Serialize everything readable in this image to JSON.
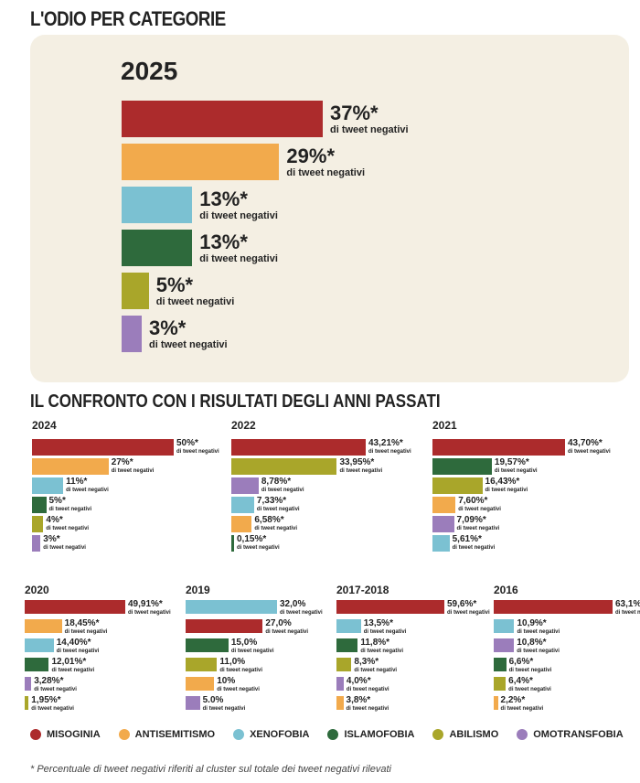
{
  "title": "L'ODIO PER CATEGORIE",
  "comparison_title": "IL CONFRONTO CON I RISULTATI DEGLI ANNI PASSATI",
  "sub_label": "di tweet negativi",
  "footnote": "* Percentuale di tweet negativi riferiti al cluster sul totale dei tweet negativi rilevati",
  "colors": {
    "misoginia": "#ac2b2c",
    "antisemitismo": "#f2aa4c",
    "xenofobia": "#7bc1d2",
    "islamofobia": "#2e6a3c",
    "abilismo": "#a9a62a",
    "omotransfobia": "#9b7dbb"
  },
  "legend": [
    {
      "key": "misoginia",
      "label": "MISOGINIA"
    },
    {
      "key": "antisemitismo",
      "label": "ANTISEMITISMO"
    },
    {
      "key": "xenofobia",
      "label": "XENOFOBIA"
    },
    {
      "key": "islamofobia",
      "label": "ISLAMOFOBIA"
    },
    {
      "key": "abilismo",
      "label": "ABILISMO"
    },
    {
      "key": "omotransfobia",
      "label": "OMOTRANSFOBIA"
    }
  ],
  "chart_data": [
    {
      "type": "bar",
      "title": "2025",
      "categories": [
        "misoginia",
        "antisemitismo",
        "xenofobia",
        "islamofobia",
        "abilismo",
        "omotransfobia"
      ],
      "values": [
        37,
        29,
        13,
        13,
        5,
        3
      ],
      "labels": [
        "37%*",
        "29%*",
        "13%*",
        "13%*",
        "5%*",
        "3%*"
      ]
    },
    {
      "type": "bar",
      "title": "2024",
      "categories": [
        "misoginia",
        "antisemitismo",
        "xenofobia",
        "islamofobia",
        "abilismo",
        "omotransfobia"
      ],
      "values": [
        50,
        27,
        11,
        5,
        4,
        3
      ],
      "labels": [
        "50%*",
        "27%*",
        "11%*",
        "5%*",
        "4%*",
        "3%*"
      ]
    },
    {
      "type": "bar",
      "title": "2022",
      "categories": [
        "misoginia",
        "abilismo",
        "omotransfobia",
        "xenofobia",
        "antisemitismo",
        "islamofobia"
      ],
      "values": [
        43.21,
        33.95,
        8.78,
        7.33,
        6.58,
        0.15
      ],
      "labels": [
        "43,21%*",
        "33,95%*",
        "8,78%*",
        "7,33%*",
        "6,58%*",
        "0,15%*"
      ]
    },
    {
      "type": "bar",
      "title": "2021",
      "categories": [
        "misoginia",
        "islamofobia",
        "abilismo",
        "antisemitismo",
        "omotransfobia",
        "xenofobia"
      ],
      "values": [
        43.7,
        19.57,
        16.43,
        7.6,
        7.09,
        5.61
      ],
      "labels": [
        "43,70%*",
        "19,57%*",
        "16,43%*",
        "7,60%*",
        "7,09%*",
        "5,61%*"
      ]
    },
    {
      "type": "bar",
      "title": "2020",
      "categories": [
        "misoginia",
        "antisemitismo",
        "xenofobia",
        "islamofobia",
        "omotransfobia",
        "abilismo"
      ],
      "values": [
        49.91,
        18.45,
        14.4,
        12.01,
        3.28,
        1.95
      ],
      "labels": [
        "49,91%*",
        "18,45%*",
        "14,40%*",
        "12,01%*",
        "3,28%*",
        "1,95%*"
      ]
    },
    {
      "type": "bar",
      "title": "2019",
      "categories": [
        "xenofobia",
        "misoginia",
        "islamofobia",
        "abilismo",
        "antisemitismo",
        "omotransfobia"
      ],
      "values": [
        32.0,
        27.0,
        15.0,
        11.0,
        10,
        5.0
      ],
      "labels": [
        "32,0%",
        "27,0%",
        "15,0%",
        "11,0%",
        "10%",
        "5.0%"
      ]
    },
    {
      "type": "bar",
      "title": "2017-2018",
      "categories": [
        "misoginia",
        "xenofobia",
        "islamofobia",
        "abilismo",
        "omotransfobia",
        "antisemitismo"
      ],
      "values": [
        59.6,
        13.5,
        11.8,
        8.3,
        4.0,
        3.8
      ],
      "labels": [
        "59,6%*",
        "13,5%*",
        "11,8%*",
        "8,3%*",
        "4,0%*",
        "3,8%*"
      ]
    },
    {
      "type": "bar",
      "title": "2016",
      "categories": [
        "misoginia",
        "xenofobia",
        "omotransfobia",
        "islamofobia",
        "abilismo",
        "antisemitismo"
      ],
      "values": [
        63.1,
        10.9,
        10.8,
        6.6,
        6.4,
        2.2
      ],
      "labels": [
        "63,1%*",
        "10,9%*",
        "10,8%*",
        "6,6%*",
        "6,4%*",
        "2,2%*"
      ]
    }
  ]
}
